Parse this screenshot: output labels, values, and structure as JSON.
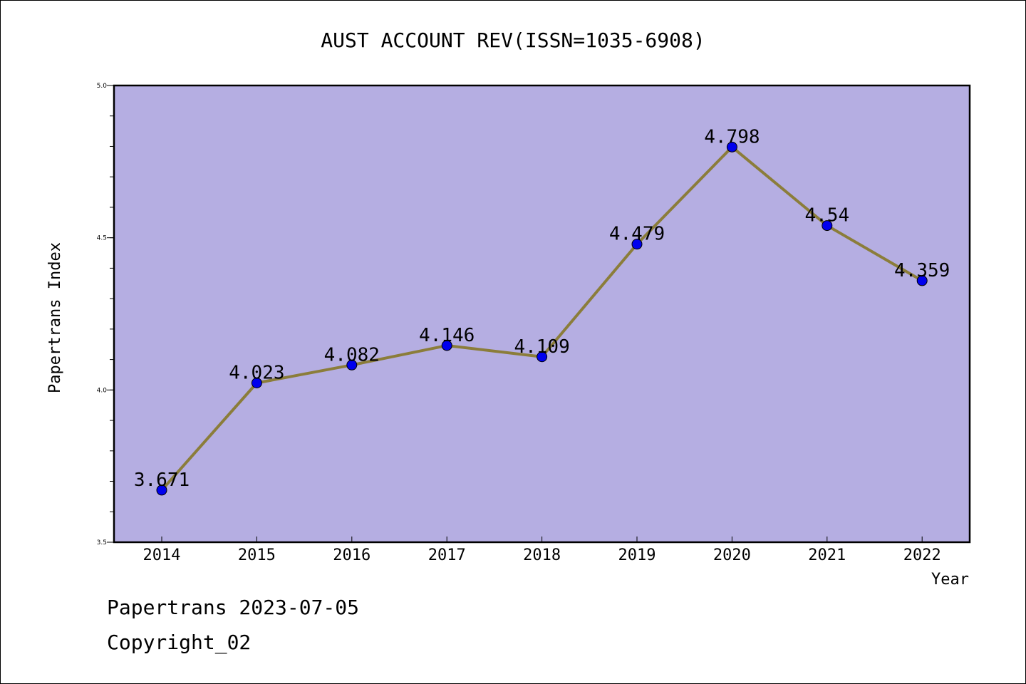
{
  "chart_data": {
    "type": "line",
    "title": "AUST ACCOUNT REV(ISSN=1035-6908)",
    "xlabel": "Year",
    "ylabel": "Papertrans Index",
    "categories": [
      "2014",
      "2015",
      "2016",
      "2017",
      "2018",
      "2019",
      "2020",
      "2021",
      "2022"
    ],
    "values": [
      3.671,
      4.023,
      4.082,
      4.146,
      4.109,
      4.479,
      4.798,
      4.54,
      4.359
    ],
    "data_labels": [
      "3.671",
      "4.023",
      "4.082",
      "4.146",
      "4.109",
      "4.479",
      "4.798",
      "4.54",
      "4.359"
    ],
    "ylim": [
      3.5,
      5.0
    ],
    "y_tick_labels": [
      "3.5",
      "4.0",
      "4.5",
      "5.0"
    ],
    "grid": false,
    "legend": "none",
    "colors": {
      "plot_background": "#b5aee2",
      "line": "#8b7d3a",
      "marker": "#0000ee",
      "axis": "#000000"
    }
  },
  "footer": {
    "line1": "Papertrans 2023-07-05",
    "line2": "Copyright_02"
  }
}
